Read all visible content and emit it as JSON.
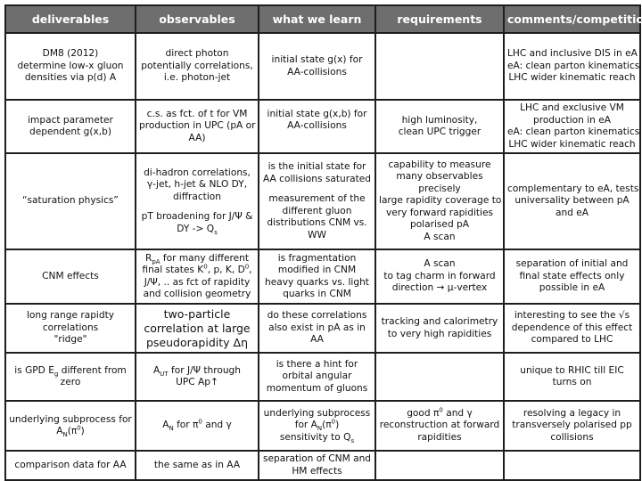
{
  "headers": [
    "deliverables",
    "observables",
    "what we learn",
    "requirements",
    "comments/competition"
  ],
  "colors": {
    "header_bg": "#6e6e6e",
    "header_text": "#ffffff",
    "border": "#1e1e1e"
  },
  "rows": [
    [
      [
        [
          "DM8 (2012)"
        ],
        [
          "determine low-x gluon"
        ],
        [
          "densities via p(d) A"
        ]
      ],
      [
        [
          "direct photon"
        ],
        [
          "potentially correlations,"
        ],
        [
          "i.e. photon-jet"
        ]
      ],
      [
        [
          "initial state g(x) for"
        ],
        [
          "AA-collisions"
        ]
      ],
      [],
      [
        [
          "LHC and inclusive DIS in eA"
        ],
        [
          "eA: clean parton kinematics"
        ],
        [
          "LHC wider kinematic reach"
        ]
      ]
    ],
    [
      [
        [
          "impact parameter"
        ],
        [
          "dependent g(x,b)"
        ]
      ],
      [
        [
          "c.s. as fct. of t for VM"
        ],
        [
          "production in UPC (pA or"
        ],
        [
          "AA)"
        ]
      ],
      [
        [
          "initial state g(x,b) for"
        ],
        [
          "AA-collisions"
        ],
        [
          ""
        ]
      ],
      [
        [
          "high luminosity,"
        ],
        [
          "clean UPC trigger"
        ]
      ],
      [
        [
          "LHC and exclusive VM"
        ],
        [
          "production in eA"
        ],
        [
          "eA: clean parton kinematics"
        ],
        [
          "LHC wider kinematic reach"
        ]
      ]
    ],
    [
      [
        [
          "“saturation physics”"
        ]
      ],
      [
        [
          "di-hadron correlations,"
        ],
        [
          "γ-jet, h-jet & NLO DY,"
        ],
        [
          "diffraction"
        ],
        [],
        [
          "pT broadening for J/Ψ &"
        ],
        [
          "DY -> Q",
          {
            "sub": "s"
          }
        ]
      ],
      [
        [
          "is the initial state for"
        ],
        [
          "AA collisions saturated"
        ],
        [],
        [
          "measurement of the"
        ],
        [
          "different gluon"
        ],
        [
          "distributions CNM vs."
        ],
        [
          "WW"
        ]
      ],
      [
        [
          "capability to measure"
        ],
        [
          "many observables"
        ],
        [
          "precisely"
        ],
        [
          "large rapidity coverage to"
        ],
        [
          "very forward rapidities"
        ],
        [
          "polarised pA"
        ],
        [
          "A scan"
        ]
      ],
      [
        [
          "complementary to eA, tests"
        ],
        [
          "universality between pA"
        ],
        [
          "and eA"
        ]
      ]
    ],
    [
      [
        [
          "CNM effects"
        ]
      ],
      [
        [
          "R",
          {
            "sub": "pA"
          },
          " for many different"
        ],
        [
          "final states K",
          {
            "sup": "0"
          },
          ", p, K, D",
          {
            "sup": "0"
          },
          ","
        ],
        [
          "J/Ψ, .. as fct of rapidity"
        ],
        [
          "and collision geometry"
        ]
      ],
      [
        [
          "is fragmentation"
        ],
        [
          "modified in CNM"
        ],
        [
          "heavy quarks vs. light"
        ],
        [
          "quarks in CNM"
        ]
      ],
      [
        [
          "A scan"
        ],
        [
          "to tag charm in forward"
        ],
        [
          "direction → μ-vertex"
        ]
      ],
      [
        [
          "separation of initial and"
        ],
        [
          "final state effects only"
        ],
        [
          "possible in eA"
        ]
      ]
    ],
    [
      [
        [
          "long range rapidty"
        ],
        [
          "correlations"
        ],
        [
          "\"ridge\""
        ]
      ],
      [
        [
          "two-particle"
        ],
        [
          "correlation  at large"
        ],
        [
          "pseudorapidity Δη"
        ]
      ],
      [
        [
          "do these correlations"
        ],
        [
          "also exist in pA as in"
        ],
        [
          "AA"
        ]
      ],
      [
        [
          "tracking and calorimetry"
        ],
        [
          "to very high rapidities"
        ]
      ],
      [
        [
          "interesting to see the √s"
        ],
        [
          "dependence of this effect"
        ],
        [
          "compared to LHC"
        ]
      ]
    ],
    [
      [
        [
          "is GPD E",
          {
            "sub": "g"
          },
          " different from"
        ],
        [
          "zero"
        ]
      ],
      [
        [
          "A",
          {
            "sub": "UT"
          },
          " for J/Ψ through"
        ],
        [
          "UPC Ap↑"
        ]
      ],
      [
        [
          "is there a hint for"
        ],
        [
          "orbital angular"
        ],
        [
          "momentum of gluons"
        ]
      ],
      [],
      [
        [
          "unique to RHIC till EIC"
        ],
        [
          "turns on"
        ]
      ]
    ],
    [
      [
        [
          "underlying subprocess for"
        ],
        [
          "A",
          {
            "sub": "N"
          },
          "(π",
          {
            "sup": "0"
          },
          ")"
        ]
      ],
      [
        [
          "A",
          {
            "sub": "N"
          },
          " for π",
          {
            "sup": "0"
          },
          " and γ"
        ]
      ],
      [
        [
          "underlying subprocess"
        ],
        [
          "for A",
          {
            "sub": "N"
          },
          "(π",
          {
            "sup": "0"
          },
          ")"
        ],
        [
          "sensitivity to Q",
          {
            "sub": "s"
          }
        ]
      ],
      [
        [
          "good π",
          {
            "sup": "0"
          },
          " and γ"
        ],
        [
          "reconstruction at forward"
        ],
        [
          "rapidities"
        ]
      ],
      [
        [
          "resolving a legacy in"
        ],
        [
          "transversely polarised pp"
        ],
        [
          "collisions"
        ]
      ]
    ],
    [
      [
        [
          "comparison data for AA"
        ]
      ],
      [
        [
          "the same as in AA"
        ]
      ],
      [
        [
          "separation of CNM and"
        ],
        [
          "HM effects"
        ]
      ],
      [],
      []
    ]
  ]
}
